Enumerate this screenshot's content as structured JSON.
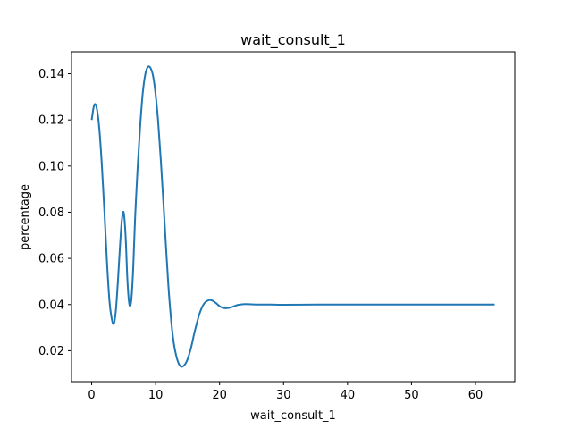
{
  "chart_data": {
    "type": "line",
    "title": "wait_consult_1",
    "xlabel": "wait_consult_1",
    "ylabel": "percentage",
    "xlim": [
      -3.15,
      66.15
    ],
    "ylim": [
      0.0066,
      0.1495
    ],
    "xticks": [
      0,
      10,
      20,
      30,
      40,
      50,
      60
    ],
    "yticks": [
      0.02,
      0.04,
      0.06,
      0.08,
      0.1,
      0.12,
      0.14
    ],
    "ytick_labels": [
      "0.02",
      "0.04",
      "0.06",
      "0.08",
      "0.10",
      "0.12",
      "0.14"
    ],
    "grid": false,
    "series": [
      {
        "color": "#1f77b4",
        "x": [
          0,
          0.4,
          0.8,
          1.2,
          1.6,
          2.0,
          2.4,
          2.8,
          3.2,
          3.5,
          3.8,
          4.1,
          4.4,
          4.7,
          5.0,
          5.3,
          5.6,
          5.9,
          6.2,
          6.5,
          6.8,
          7.2,
          7.6,
          8.0,
          8.4,
          8.8,
          9.2,
          9.6,
          10.0,
          10.4,
          10.8,
          11.2,
          11.6,
          12.0,
          12.4,
          12.8,
          13.2,
          13.6,
          14.0,
          14.4,
          14.8,
          15.2,
          15.6,
          16.0,
          16.4,
          16.8,
          17.2,
          17.6,
          18.0,
          18.5,
          19.0,
          19.5,
          20.0,
          20.5,
          21.0,
          21.5,
          22.0,
          22.5,
          23.0,
          24.0,
          25.0,
          26.0,
          28.0,
          30.0,
          35.0,
          40.0,
          45.0,
          50.0,
          55.0,
          60.0,
          63.0
        ],
        "y": [
          0.12,
          0.1265,
          0.125,
          0.116,
          0.1,
          0.08,
          0.058,
          0.041,
          0.033,
          0.032,
          0.038,
          0.05,
          0.064,
          0.076,
          0.08,
          0.07,
          0.05,
          0.04,
          0.042,
          0.056,
          0.078,
          0.1,
          0.118,
          0.132,
          0.14,
          0.143,
          0.1425,
          0.139,
          0.131,
          0.119,
          0.103,
          0.085,
          0.066,
          0.048,
          0.034,
          0.024,
          0.018,
          0.0145,
          0.013,
          0.0135,
          0.015,
          0.018,
          0.022,
          0.027,
          0.0315,
          0.0355,
          0.0385,
          0.0405,
          0.0415,
          0.042,
          0.0415,
          0.0405,
          0.0393,
          0.0386,
          0.0384,
          0.0386,
          0.039,
          0.0395,
          0.0399,
          0.0402,
          0.0401,
          0.04,
          0.04,
          0.0399,
          0.04,
          0.04,
          0.04,
          0.04,
          0.04,
          0.04,
          0.04
        ]
      }
    ]
  }
}
